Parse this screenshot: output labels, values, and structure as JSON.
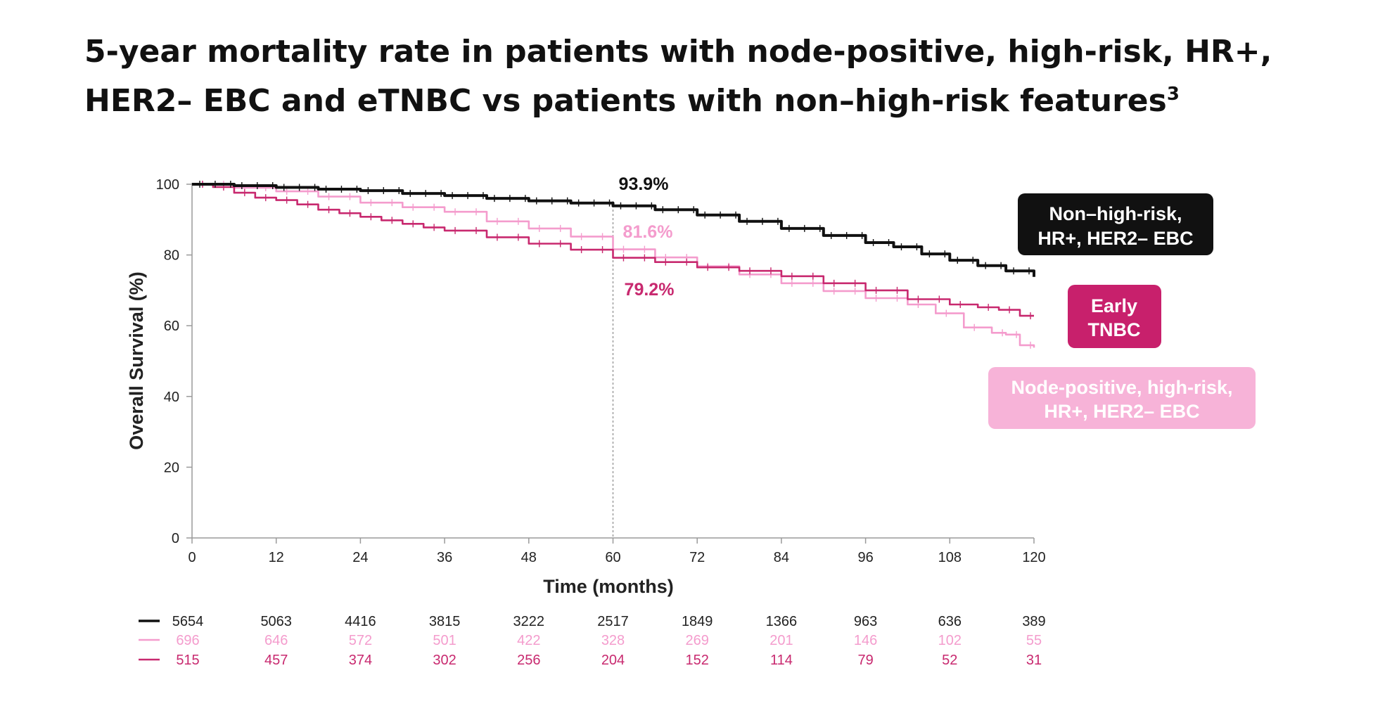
{
  "title": {
    "main": "5-year mortality rate in patients with node-positive, high-risk, HR+, HER2– EBC and eTNBC vs patients with non–high-risk features",
    "superscript": "3"
  },
  "colors": {
    "black_series": "#111111",
    "light_pink_series": "#f49ccd",
    "magenta_series": "#c8296f",
    "light_pink_box": "#f7b3d8",
    "magenta_box": "#c8206c",
    "axis": "#9a9a9a",
    "ref_line": "#8a8a8a"
  },
  "chart_data": {
    "type": "line",
    "subtype": "kaplan-meier",
    "xlabel": "Time (months)",
    "ylabel": "Overall Survival (%)",
    "xlim": [
      0,
      120
    ],
    "ylim": [
      0,
      100
    ],
    "x_ticks": [
      0,
      12,
      24,
      36,
      48,
      60,
      72,
      84,
      96,
      108,
      120
    ],
    "y_ticks": [
      0,
      20,
      40,
      60,
      80,
      100
    ],
    "reference_x": 60,
    "series": [
      {
        "key": "black",
        "name": "Non–high-risk, HR+, HER2– EBC",
        "label_lines": [
          "Non–high-risk,",
          "HR+, HER2– EBC"
        ],
        "color": "#111111",
        "x": [
          0,
          6,
          12,
          18,
          24,
          30,
          36,
          42,
          48,
          54,
          60,
          66,
          72,
          78,
          84,
          90,
          96,
          100,
          104,
          108,
          112,
          116,
          120
        ],
        "y": [
          100,
          99.6,
          99.1,
          98.6,
          98.2,
          97.4,
          96.8,
          96.0,
          95.3,
          94.7,
          93.9,
          92.8,
          91.3,
          89.5,
          87.5,
          85.5,
          83.5,
          82.3,
          80.3,
          78.5,
          77.0,
          75.5,
          73.8
        ]
      },
      {
        "key": "light",
        "name": "Node-positive, high-risk, HR+, HER2– EBC",
        "label_lines": [
          "Node-positive, high-risk,",
          "HR+, HER2– EBC"
        ],
        "color": "#f49ccd",
        "x": [
          0,
          6,
          12,
          18,
          24,
          30,
          36,
          42,
          48,
          54,
          60,
          66,
          72,
          78,
          84,
          90,
          96,
          102,
          106,
          110,
          114,
          116,
          118,
          120
        ],
        "y": [
          100,
          99.0,
          98.0,
          96.5,
          94.8,
          93.5,
          92.2,
          89.5,
          87.5,
          85.2,
          81.6,
          79.3,
          76.8,
          74.5,
          72.0,
          69.8,
          67.8,
          66.0,
          63.5,
          59.5,
          58.0,
          57.5,
          54.5,
          53.8
        ]
      },
      {
        "key": "magenta",
        "name": "Early TNBC",
        "label_lines": [
          "Early",
          "TNBC"
        ],
        "color": "#c8296f",
        "x": [
          0,
          3,
          6,
          9,
          12,
          15,
          18,
          21,
          24,
          27,
          30,
          33,
          36,
          42,
          48,
          54,
          60,
          66,
          72,
          78,
          84,
          90,
          96,
          102,
          108,
          112,
          115,
          118,
          120
        ],
        "y": [
          100,
          99.2,
          97.6,
          96.2,
          95.5,
          94.3,
          92.8,
          91.8,
          90.8,
          89.8,
          88.8,
          87.8,
          86.9,
          85.0,
          83.2,
          81.5,
          79.2,
          78.0,
          76.5,
          75.5,
          74.0,
          72.0,
          70.0,
          67.5,
          66.0,
          65.2,
          64.5,
          62.8,
          62.8
        ]
      }
    ],
    "annotations": [
      {
        "text": "93.9%",
        "series": "black"
      },
      {
        "text": "81.6%",
        "series": "light"
      },
      {
        "text": "79.2%",
        "series": "magenta"
      }
    ],
    "number_at_risk": [
      {
        "series": "black",
        "values": [
          5654,
          5063,
          4416,
          3815,
          3222,
          2517,
          1849,
          1366,
          963,
          636,
          389
        ]
      },
      {
        "series": "light",
        "values": [
          696,
          646,
          572,
          501,
          422,
          328,
          269,
          201,
          146,
          102,
          55
        ]
      },
      {
        "series": "magenta",
        "values": [
          515,
          457,
          374,
          302,
          256,
          204,
          152,
          114,
          79,
          52,
          31
        ]
      }
    ]
  }
}
